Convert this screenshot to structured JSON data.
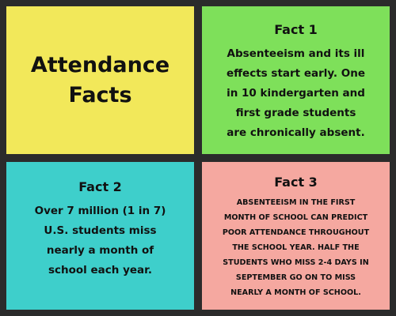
{
  "colors": {
    "background": "#2b2b2b",
    "title_card": "#f2e85a",
    "fact1_card": "#7ee05a",
    "fact2_card": "#3ecfcb",
    "fact3_card": "#f5a8a0"
  },
  "title": {
    "lines": [
      "Attendance",
      "Facts"
    ]
  },
  "fact1": {
    "heading": "Fact 1",
    "lines": [
      "Absenteeism and its ill",
      "effects start early. One",
      "in 10 kindergarten and",
      "first grade students",
      "are chronically absent."
    ]
  },
  "fact2": {
    "heading": "Fact 2",
    "lines": [
      "Over 7 million (1 in 7)",
      "U.S. students miss",
      "nearly a month of",
      "school each year."
    ]
  },
  "fact3": {
    "heading": "Fact 3",
    "lines": [
      "ABSENTEEISM IN THE FIRST",
      "MONTH OF SCHOOL CAN PREDICT",
      "POOR ATTENDANCE THROUGHOUT",
      "THE SCHOOL YEAR. HALF THE",
      "STUDENTS WHO MISS 2-4 DAYS IN",
      "SEPTEMBER GO ON TO MISS",
      "NEARLY A MONTH OF SCHOOL."
    ]
  }
}
